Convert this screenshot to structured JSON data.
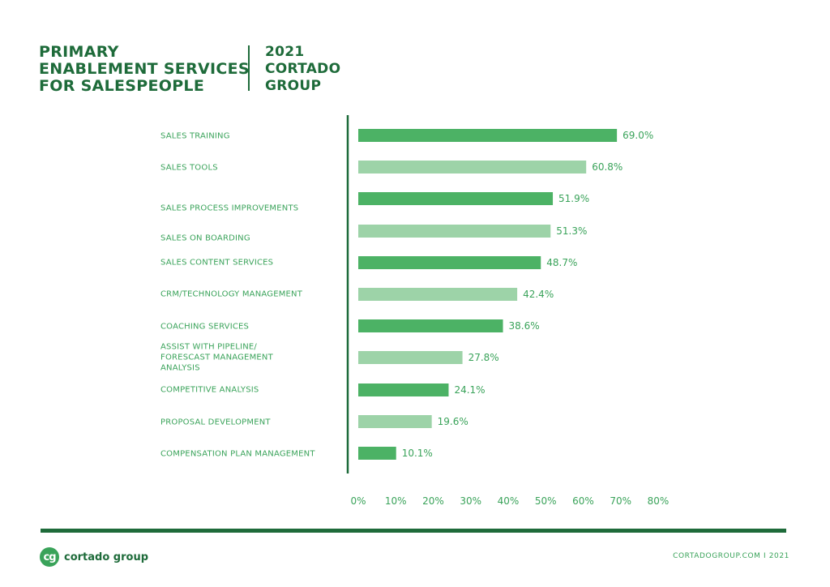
{
  "header": {
    "title": "PRIMARY\nENABLEMENT SERVICES\nFOR SALESPEOPLE",
    "subtitle": "2021\nCORTADO\nGROUP"
  },
  "colors": {
    "dark_green": "#1e6b3a",
    "bar_dark": "#4cb265",
    "bar_light": "#9dd3a8",
    "text_green": "#3aa35a"
  },
  "chart_data": {
    "type": "bar",
    "orientation": "horizontal",
    "categories": [
      "SALES TRAINING",
      "SALES TOOLS",
      "SALES PROCESS IMPROVEMENTS",
      "SALES ON BOARDING",
      "SALES CONTENT SERVICES",
      "CRM/TECHNOLOGY MANAGEMENT",
      "COACHING SERVICES",
      "ASSIST WITH PIPELINE/\nFORESCAST MANAGEMENT\nANALYSIS",
      "COMPETITIVE ANALYSIS",
      "PROPOSAL DEVELOPMENT",
      "COMPENSATION PLAN MANAGEMENT"
    ],
    "values": [
      69.0,
      60.8,
      51.9,
      51.3,
      48.7,
      42.4,
      38.6,
      27.8,
      24.1,
      19.6,
      10.1
    ],
    "value_labels": [
      "69.0%",
      "60.8%",
      "51.9%",
      "51.3%",
      "48.7%",
      "42.4%",
      "38.6%",
      "27.8%",
      "24.1%",
      "19.6%",
      "10.1%"
    ],
    "x_ticks": [
      "0%",
      "10%",
      "20%",
      "30%",
      "40%",
      "50%",
      "60%",
      "70%",
      "80%"
    ],
    "xlim": [
      0,
      80
    ],
    "bar_colors": [
      "dark",
      "light",
      "dark",
      "light",
      "dark",
      "light",
      "dark",
      "light",
      "dark",
      "light",
      "dark"
    ]
  },
  "footer": {
    "logo_mark": "cg",
    "logo_text": "cortado group",
    "right_text": "CORTADOGROUP.COM  I 2021"
  }
}
